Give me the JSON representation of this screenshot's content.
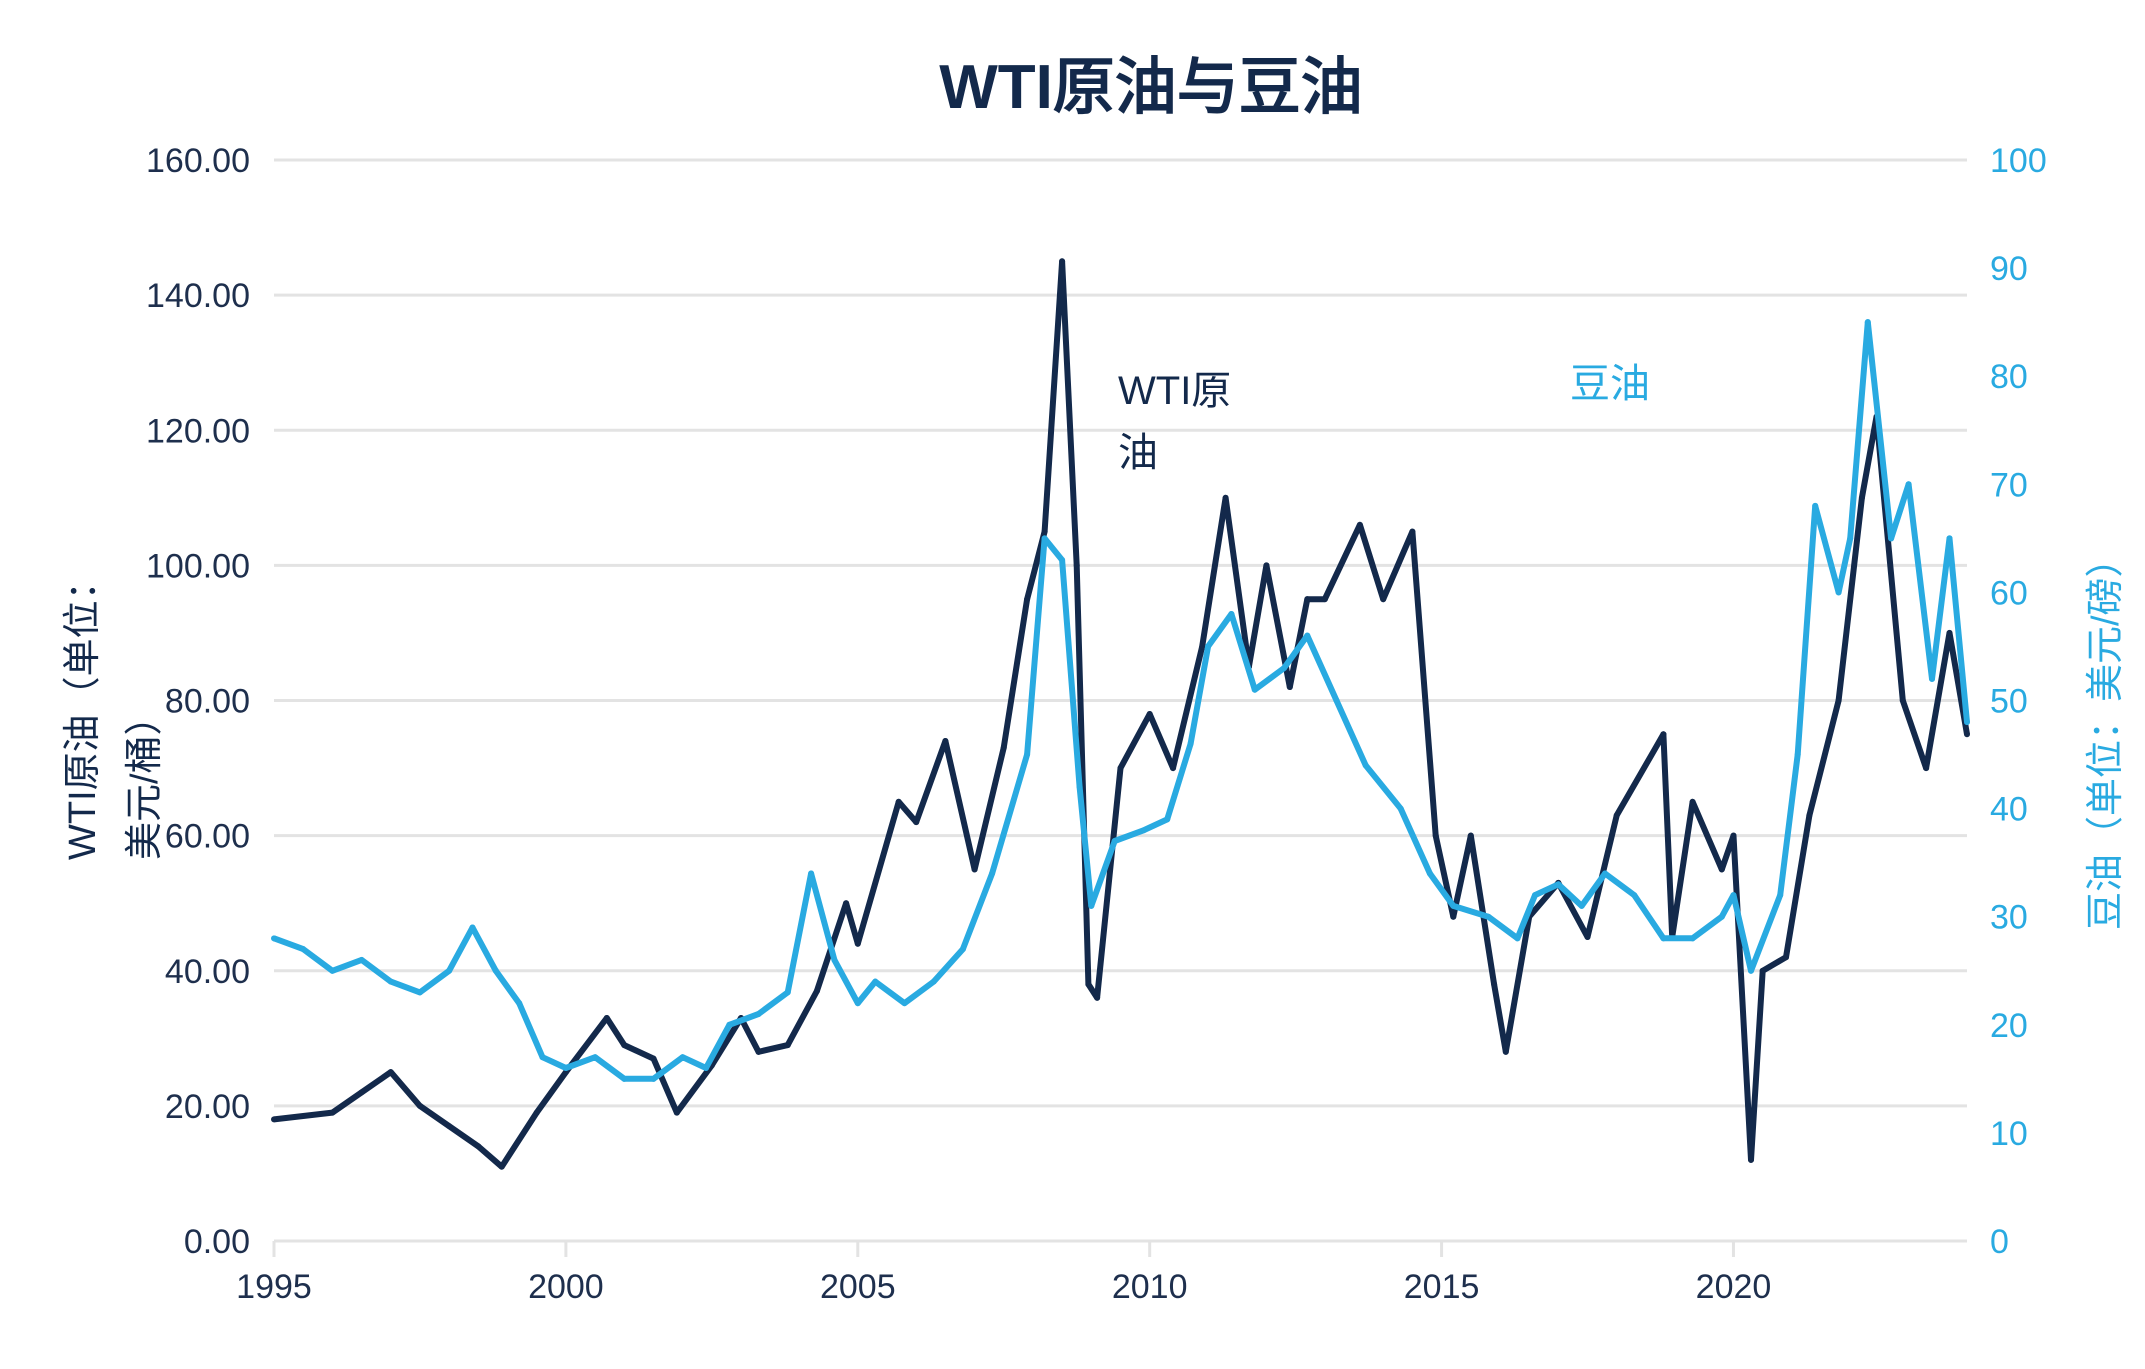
{
  "chart_data": {
    "type": "line",
    "title": "WTI原油与豆油",
    "xlabel": "",
    "ylabel_left": "WTI原油（单位：美元/桶）",
    "ylabel_right": "豆油（单位：美元/磅）",
    "xlim": [
      1995,
      2024
    ],
    "ylim_left": [
      0,
      160
    ],
    "ylim_right": [
      0,
      100
    ],
    "x_ticks": [
      "1995",
      "2000",
      "2005",
      "2010",
      "2015",
      "2020"
    ],
    "y_ticks_left": [
      "0.00",
      "20.00",
      "40.00",
      "60.00",
      "80.00",
      "100.00",
      "120.00",
      "140.00",
      "160.00"
    ],
    "y_ticks_right": [
      "0",
      "10",
      "20",
      "30",
      "40",
      "50",
      "60",
      "70",
      "80",
      "90",
      "100"
    ],
    "grid": true,
    "annotations": {
      "wti": "WTI原油",
      "soy": "豆油"
    },
    "colors": {
      "wti": "#13294b",
      "soy": "#29aae1",
      "grid": "#e3e3e3",
      "text": "#1e2f4d"
    },
    "series": [
      {
        "name": "WTI原油",
        "axis": "left",
        "x": [
          1995.0,
          1996.0,
          1996.5,
          1997.0,
          1997.5,
          1998.0,
          1998.5,
          1998.9,
          1999.5,
          2000.0,
          2000.7,
          2001.0,
          2001.5,
          2001.9,
          2002.5,
          2003.0,
          2003.3,
          2003.8,
          2004.3,
          2004.8,
          2005.0,
          2005.7,
          2006.0,
          2006.5,
          2007.0,
          2007.5,
          2007.9,
          2008.2,
          2008.5,
          2008.75,
          2008.95,
          2009.1,
          2009.5,
          2010.0,
          2010.4,
          2010.9,
          2011.3,
          2011.7,
          2012.0,
          2012.4,
          2012.7,
          2013.0,
          2013.6,
          2014.0,
          2014.5,
          2014.9,
          2015.2,
          2015.5,
          2015.9,
          2016.1,
          2016.5,
          2017.0,
          2017.5,
          2018.0,
          2018.8,
          2018.95,
          2019.3,
          2019.8,
          2020.0,
          2020.3,
          2020.5,
          2020.9,
          2021.3,
          2021.8,
          2022.2,
          2022.45,
          2022.9,
          2023.3,
          2023.7,
          2024.0
        ],
        "y": [
          18,
          19,
          22,
          25,
          20,
          17,
          14,
          11,
          19,
          25,
          33,
          29,
          27,
          19,
          26,
          33,
          28,
          29,
          37,
          50,
          44,
          65,
          62,
          74,
          55,
          73,
          95,
          105,
          145,
          100,
          38,
          36,
          70,
          78,
          70,
          88,
          110,
          85,
          100,
          82,
          95,
          95,
          106,
          95,
          105,
          60,
          48,
          60,
          38,
          28,
          48,
          53,
          45,
          63,
          75,
          45,
          65,
          55,
          60,
          12,
          40,
          42,
          63,
          80,
          110,
          122,
          80,
          70,
          90,
          75
        ]
      },
      {
        "name": "豆油",
        "axis": "right",
        "x": [
          1995.0,
          1995.5,
          1996.0,
          1996.5,
          1997.0,
          1997.5,
          1998.0,
          1998.4,
          1998.8,
          1999.2,
          1999.6,
          2000.0,
          2000.5,
          2001.0,
          2001.5,
          2002.0,
          2002.4,
          2002.8,
          2003.3,
          2003.8,
          2004.2,
          2004.6,
          2005.0,
          2005.3,
          2005.8,
          2006.3,
          2006.8,
          2007.3,
          2007.9,
          2008.2,
          2008.5,
          2008.8,
          2009.0,
          2009.4,
          2009.9,
          2010.3,
          2010.7,
          2011.0,
          2011.4,
          2011.8,
          2012.3,
          2012.7,
          2013.2,
          2013.7,
          2014.3,
          2014.8,
          2015.2,
          2015.8,
          2016.3,
          2016.6,
          2017.0,
          2017.4,
          2017.8,
          2018.3,
          2018.8,
          2019.3,
          2019.8,
          2020.0,
          2020.3,
          2020.8,
          2021.1,
          2021.4,
          2021.8,
          2022.0,
          2022.3,
          2022.7,
          2023.0,
          2023.4,
          2023.7,
          2024.0
        ],
        "y": [
          28,
          27,
          25,
          26,
          24,
          23,
          25,
          29,
          25,
          22,
          17,
          16,
          17,
          15,
          15,
          17,
          16,
          20,
          21,
          23,
          34,
          26,
          22,
          24,
          22,
          24,
          27,
          34,
          45,
          65,
          63,
          42,
          31,
          37,
          38,
          39,
          46,
          55,
          58,
          51,
          53,
          56,
          50,
          44,
          40,
          34,
          31,
          30,
          28,
          32,
          33,
          31,
          34,
          32,
          28,
          28,
          30,
          32,
          25,
          32,
          45,
          68,
          60,
          65,
          85,
          65,
          70,
          52,
          65,
          48
        ]
      }
    ]
  }
}
